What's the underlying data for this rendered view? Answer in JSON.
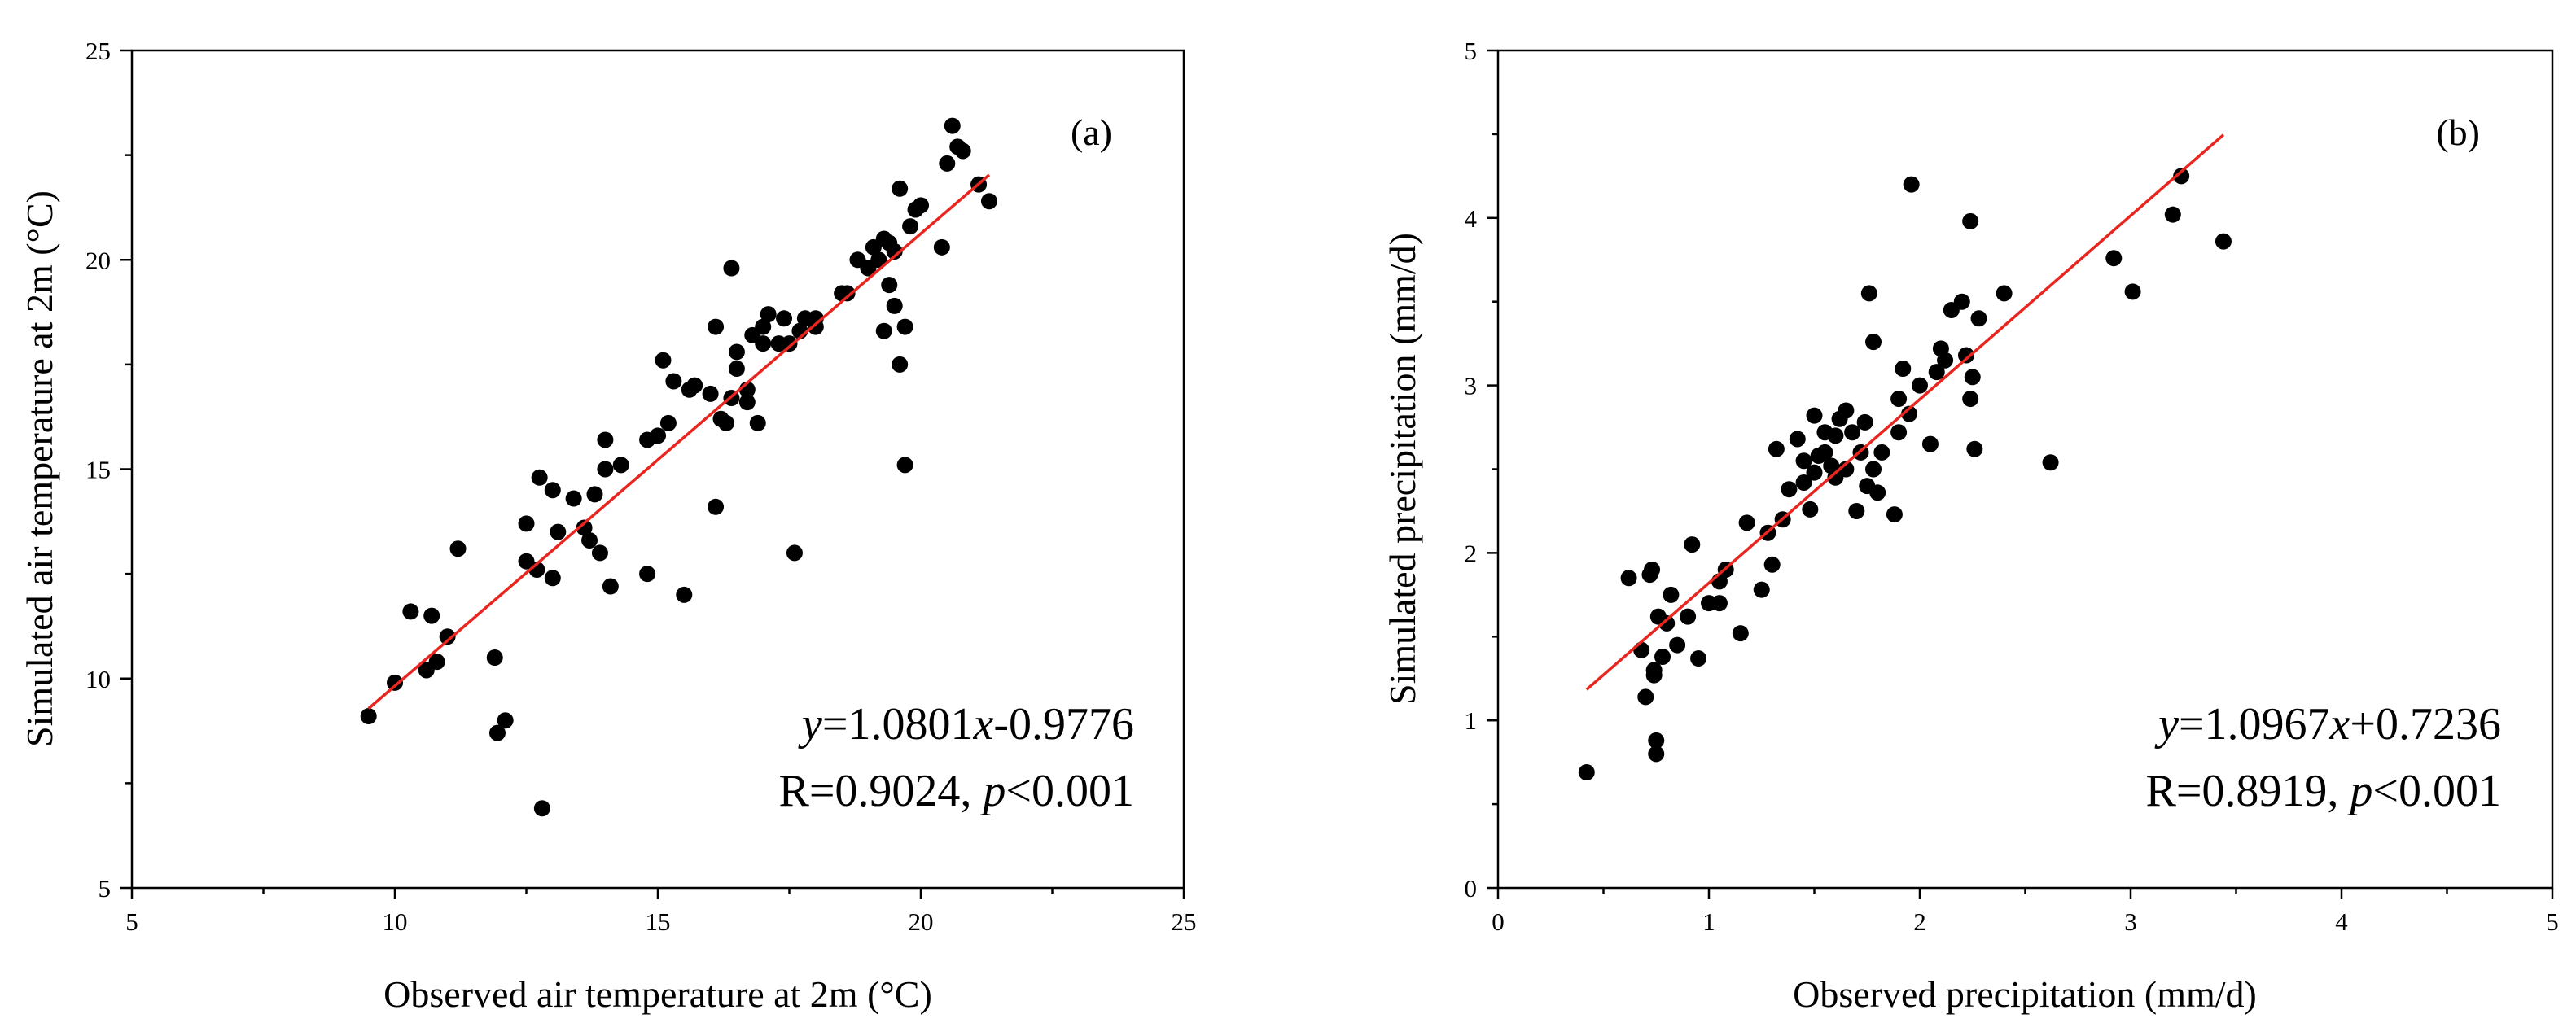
{
  "chart_data": [
    {
      "type": "scatter",
      "panel_label": "(a)",
      "title": "",
      "xlabel": "Observed air temperature at 2m (°C)",
      "ylabel": "Simulated air temperature at 2m (°C)",
      "xlim": [
        5,
        25
      ],
      "ylim": [
        5,
        25
      ],
      "xticks": [
        5,
        10,
        15,
        20,
        25
      ],
      "yticks": [
        5,
        10,
        15,
        20,
        25
      ],
      "fit": {
        "slope": 1.0801,
        "intercept": -0.9776,
        "x_range": [
          9.5,
          21.3
        ],
        "color": "#e8251f"
      },
      "annotation": {
        "eq_y": "y",
        "eq_eq": "=1.0801",
        "eq_x": "x",
        "eq_rest": "-0.9776",
        "r_text": "R=0.9024, ",
        "p_sym": "p",
        "p_rest": "<0.001"
      },
      "x": [
        9.5,
        10.0,
        10.3,
        10.7,
        10.6,
        10.8,
        11.0,
        11.2,
        11.9,
        11.95,
        12.1,
        12.5,
        12.5,
        12.7,
        12.75,
        12.8,
        13.0,
        13.0,
        13.1,
        13.4,
        13.6,
        13.7,
        13.8,
        13.9,
        14.0,
        14.0,
        14.1,
        14.3,
        14.8,
        14.8,
        15.0,
        15.1,
        15.2,
        15.3,
        15.5,
        15.6,
        15.7,
        16.0,
        16.1,
        16.1,
        16.2,
        16.3,
        16.4,
        16.4,
        16.5,
        16.5,
        16.7,
        16.7,
        16.8,
        16.9,
        17.0,
        17.0,
        17.1,
        17.3,
        17.4,
        17.5,
        17.6,
        17.7,
        17.8,
        18.0,
        18.0,
        18.5,
        18.6,
        18.8,
        19.0,
        19.1,
        19.2,
        19.3,
        19.3,
        19.4,
        19.4,
        19.5,
        19.5,
        19.6,
        19.6,
        19.7,
        19.7,
        19.8,
        19.9,
        20.0,
        20.4,
        20.5,
        20.6,
        20.7,
        20.8,
        21.1,
        21.3
      ],
      "y": [
        9.1,
        9.9,
        11.6,
        11.5,
        10.2,
        10.4,
        11.0,
        13.1,
        10.5,
        8.7,
        9.0,
        13.7,
        12.8,
        12.6,
        14.8,
        6.9,
        14.5,
        12.4,
        13.5,
        14.3,
        13.6,
        13.3,
        14.4,
        13.0,
        15.0,
        15.7,
        12.2,
        15.1,
        15.7,
        12.5,
        15.8,
        17.6,
        16.1,
        17.1,
        12.0,
        16.9,
        17.0,
        16.8,
        14.1,
        18.4,
        16.2,
        16.1,
        19.8,
        16.7,
        17.4,
        17.8,
        16.6,
        16.9,
        18.2,
        16.1,
        18.0,
        18.4,
        18.7,
        18.0,
        18.6,
        18.0,
        13.0,
        18.3,
        18.6,
        18.6,
        18.4,
        19.2,
        19.2,
        20.0,
        19.8,
        20.3,
        20.0,
        20.5,
        18.3,
        19.4,
        20.4,
        20.2,
        18.9,
        21.7,
        17.5,
        18.4,
        15.1,
        20.8,
        21.2,
        21.3,
        20.3,
        22.3,
        23.2,
        22.7,
        22.6,
        21.8,
        21.4
      ]
    },
    {
      "type": "scatter",
      "panel_label": "(b)",
      "title": "",
      "xlabel": "Observed precipitation (mm/d)",
      "ylabel": "Simulated precipitation (mm/d)",
      "xlim": [
        0,
        5
      ],
      "ylim": [
        0,
        5
      ],
      "xticks": [
        0,
        1,
        2,
        3,
        4,
        5
      ],
      "yticks": [
        0,
        1,
        2,
        3,
        4,
        5
      ],
      "fit": {
        "slope": 1.0967,
        "intercept": 0.7236,
        "x_range": [
          0.42,
          3.44
        ],
        "color": "#e8251f"
      },
      "annotation": {
        "eq_y": "y",
        "eq_eq": "=1.0967",
        "eq_x": "x",
        "eq_rest": "+0.7236",
        "r_text": "R=0.8919, ",
        "p_sym": "p",
        "p_rest": "<0.001"
      },
      "x": [
        0.42,
        0.62,
        0.68,
        0.7,
        0.72,
        0.73,
        0.74,
        0.74,
        0.75,
        0.75,
        0.76,
        0.78,
        0.8,
        0.82,
        0.85,
        0.9,
        0.92,
        0.95,
        1.0,
        1.05,
        1.05,
        1.08,
        1.15,
        1.18,
        1.25,
        1.28,
        1.3,
        1.32,
        1.35,
        1.38,
        1.42,
        1.45,
        1.45,
        1.48,
        1.5,
        1.5,
        1.52,
        1.55,
        1.55,
        1.58,
        1.6,
        1.6,
        1.62,
        1.65,
        1.65,
        1.68,
        1.7,
        1.72,
        1.74,
        1.75,
        1.76,
        1.78,
        1.78,
        1.8,
        1.82,
        1.88,
        1.9,
        1.9,
        1.92,
        1.95,
        1.96,
        2.0,
        2.05,
        2.08,
        2.1,
        2.12,
        2.15,
        2.2,
        2.22,
        2.24,
        2.24,
        2.25,
        2.26,
        2.28,
        2.4,
        2.62,
        2.92,
        3.01,
        3.2,
        3.24,
        3.44
      ],
      "y": [
        0.69,
        1.85,
        1.42,
        1.14,
        1.87,
        1.9,
        1.3,
        1.27,
        0.8,
        0.88,
        1.62,
        1.38,
        1.58,
        1.75,
        1.45,
        1.62,
        2.05,
        1.37,
        1.7,
        1.83,
        1.7,
        1.9,
        1.52,
        2.18,
        1.78,
        2.12,
        1.93,
        2.62,
        2.2,
        2.38,
        2.68,
        2.55,
        2.42,
        2.26,
        2.82,
        2.48,
        2.58,
        2.6,
        2.72,
        2.52,
        2.45,
        2.7,
        2.8,
        2.85,
        2.5,
        2.72,
        2.25,
        2.6,
        2.78,
        2.4,
        3.55,
        3.26,
        2.5,
        2.36,
        2.6,
        2.23,
        2.72,
        2.92,
        3.1,
        2.83,
        4.2,
        3.0,
        2.65,
        3.08,
        3.22,
        3.15,
        3.45,
        3.5,
        3.18,
        2.92,
        3.98,
        3.05,
        2.62,
        3.4,
        3.55,
        2.54,
        3.76,
        3.56,
        4.02,
        4.25,
        3.86
      ]
    }
  ]
}
